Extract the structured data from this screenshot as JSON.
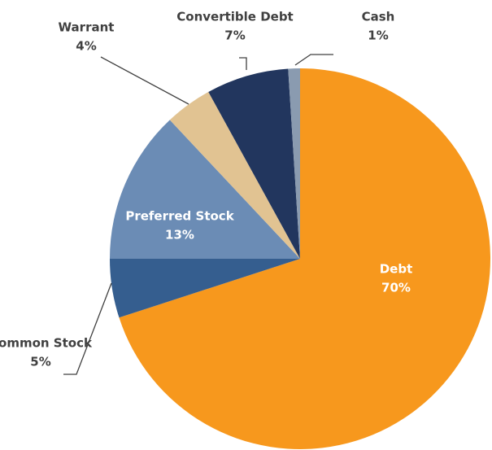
{
  "chart_data": {
    "type": "pie",
    "categories": [
      "Debt",
      "Common Stock",
      "Preferred Stock",
      "Warrant",
      "Convertible Debt",
      "Cash"
    ],
    "values": [
      70,
      5,
      13,
      4,
      7,
      1
    ],
    "value_labels": [
      "70%",
      "5%",
      "13%",
      "4%",
      "7%",
      "1%"
    ],
    "colors": [
      "#f7981d",
      "#355e8f",
      "#6b8cb5",
      "#e1c392",
      "#22365e",
      "#8a9bb0"
    ]
  }
}
